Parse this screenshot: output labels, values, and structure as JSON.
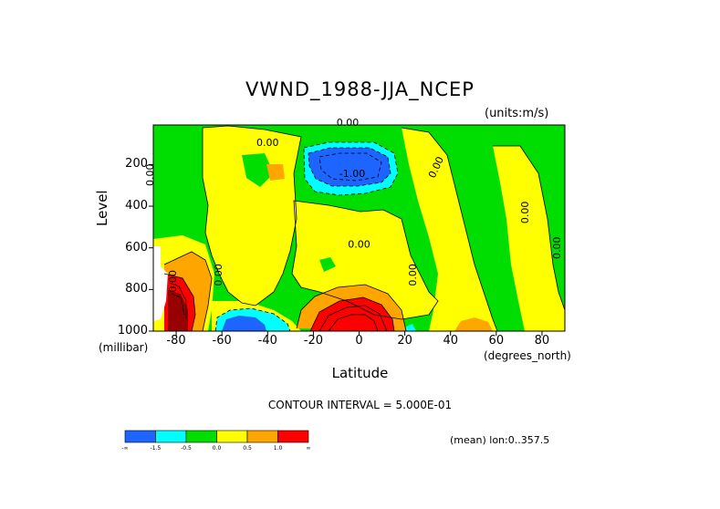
{
  "chart_data": {
    "type": "heatmap",
    "title": "VWND_1988-JJA_NCEP",
    "units": "(units:m/s)",
    "xlabel": "Latitude",
    "x_unit": "(degrees_north)",
    "ylabel": "Level",
    "y_unit": "(millibar)",
    "xlim": [
      -90,
      90
    ],
    "ylim": [
      1000,
      10
    ],
    "y_inverted": true,
    "x_ticks": [
      "-80",
      "-60",
      "-40",
      "-20",
      "0",
      "20",
      "40",
      "60",
      "80"
    ],
    "y_ticks": [
      "200",
      "400",
      "600",
      "800",
      "1000"
    ],
    "contour_interval": "CONTOUR INTERVAL = 5.000E-01",
    "contour_labels": [
      "0.00",
      "0.00",
      "-1.00",
      "0.00",
      "0.00",
      "0.00",
      "0.00",
      "0.00",
      "0.00",
      "0.00",
      "0.00"
    ],
    "colorbar": {
      "labels": [
        "-∞",
        "-1.5",
        "-0.5",
        "0.0",
        "0.5",
        "1.0",
        "∞"
      ],
      "colors": [
        "#1e64ff",
        "#00ffff",
        "#00dd00",
        "#ffff00",
        "#ffa500",
        "#ff0000"
      ]
    },
    "features": [
      {
        "name": "upper-trop negative core",
        "value_range": "< -1.5",
        "lat": [
          -15,
          5
        ],
        "level": [
          150,
          250
        ]
      },
      {
        "name": "surface positive core",
        "value_range": "> 1.0",
        "lat": [
          -15,
          10
        ],
        "level": [
          850,
          1000
        ]
      },
      {
        "name": "surface negative core",
        "value_range": "< -1.5",
        "lat": [
          -60,
          -45
        ],
        "level": [
          940,
          1000
        ]
      },
      {
        "name": "polar near-surface maximum",
        "value_range": "> 1.0",
        "lat": [
          -88,
          -80
        ],
        "level": [
          750,
          1000
        ]
      }
    ],
    "footer": "(mean) lon:0..357.5"
  },
  "colors": {
    "blue": "#1e64ff",
    "cyan": "#00ffff",
    "green": "#00dd00",
    "yellow": "#ffff00",
    "orange": "#ffa500",
    "red": "#ff0000",
    "darkred": "#990000"
  }
}
